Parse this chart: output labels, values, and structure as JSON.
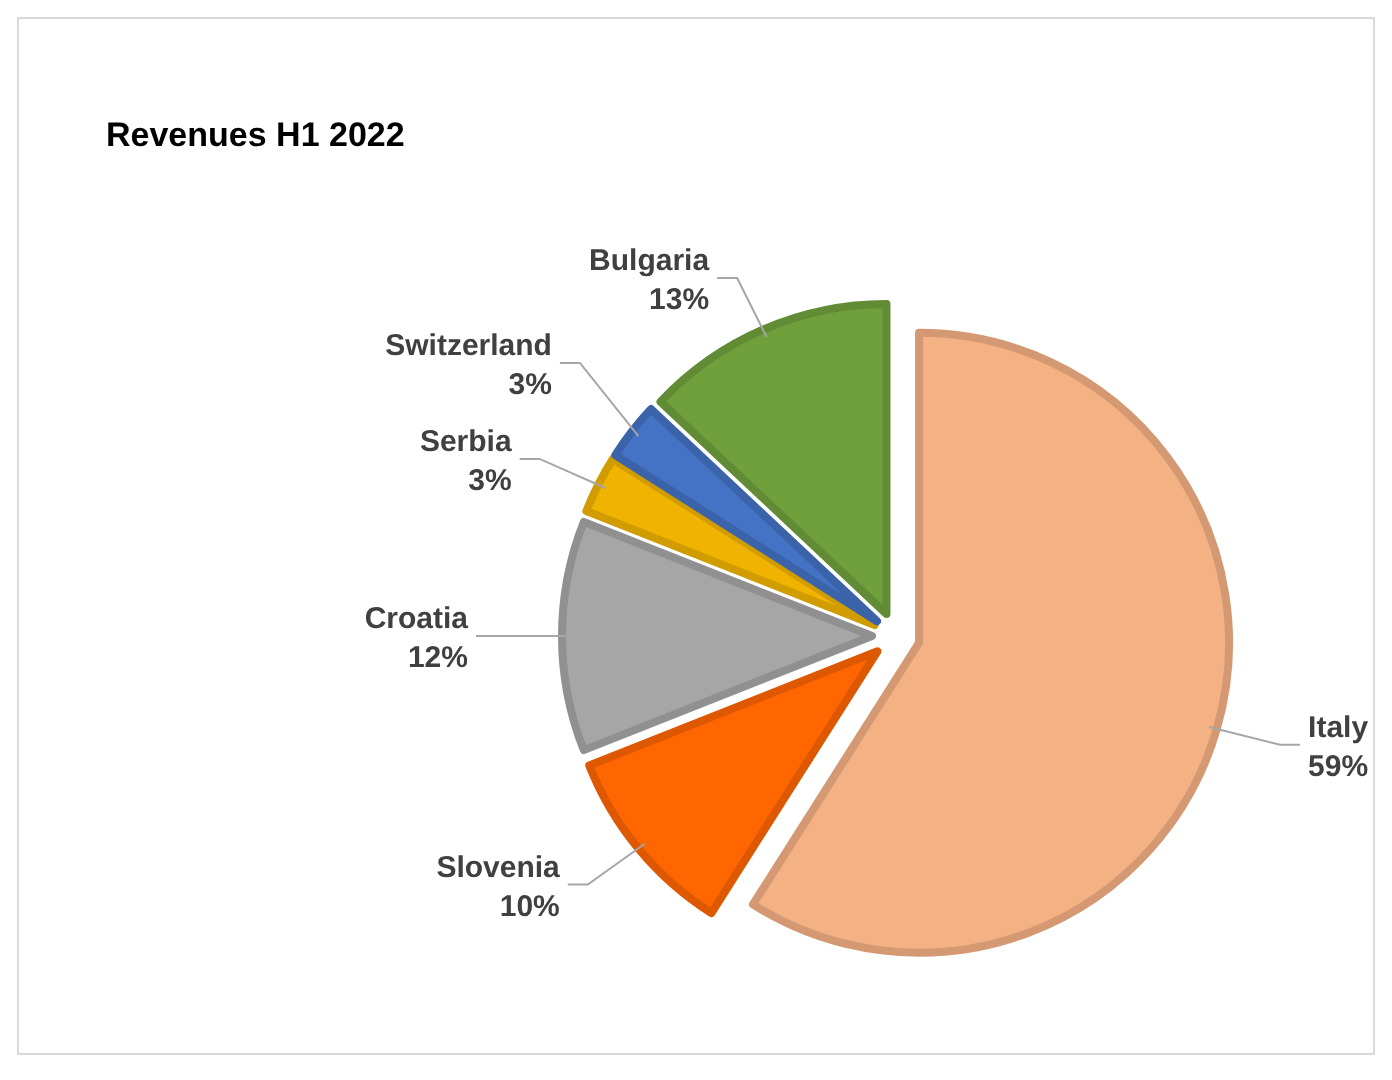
{
  "chart_data": {
    "type": "pie",
    "title": "Revenues H1 2022",
    "categories": [
      "Italy",
      "Slovenia",
      "Croatia",
      "Serbia",
      "Switzerland",
      "Bulgaria"
    ],
    "values": [
      59,
      10,
      12,
      3,
      3,
      13
    ],
    "value_labels": [
      "59%",
      "10%",
      "12%",
      "3%",
      "3%",
      "13%"
    ],
    "colors": [
      "#f4b183",
      "#ff6600",
      "#a6a6a6",
      "#f0b400",
      "#4472c4",
      "#70a03c"
    ]
  }
}
